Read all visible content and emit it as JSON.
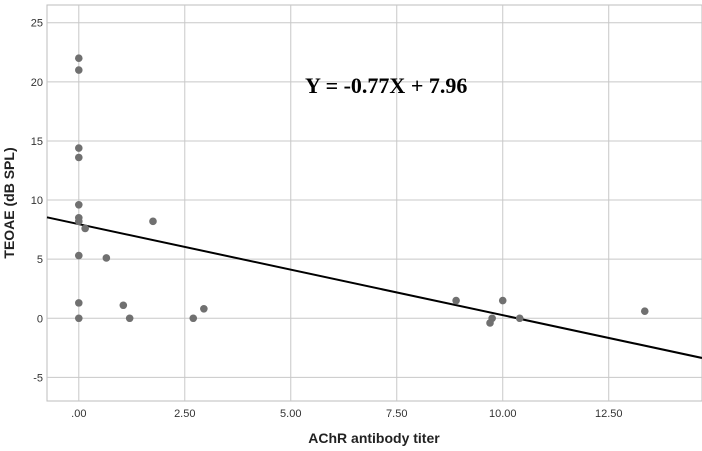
{
  "chart_data": {
    "type": "scatter",
    "xlabel": "AChR antibody titer",
    "ylabel": "TEOAE (dB SPL)",
    "xlim": [
      -0.75,
      14.7
    ],
    "ylim": [
      -7,
      26.5
    ],
    "x_ticks": [
      0,
      2.5,
      5,
      7.5,
      10,
      12.5
    ],
    "x_tick_labels": [
      ".00",
      "2.50",
      "5.00",
      "7.50",
      "10.00",
      "12.50"
    ],
    "y_ticks": [
      -5,
      0,
      5,
      10,
      15,
      20,
      25
    ],
    "y_tick_labels": [
      "-5",
      "0",
      "5",
      "10",
      "15",
      "20",
      "25"
    ],
    "grid": true,
    "point_color": "#707070",
    "line_color": "#000000",
    "points": [
      {
        "x": 0.0,
        "y": 22.0
      },
      {
        "x": 0.0,
        "y": 21.0
      },
      {
        "x": 0.0,
        "y": 14.4
      },
      {
        "x": 0.0,
        "y": 13.6
      },
      {
        "x": 0.0,
        "y": 9.6
      },
      {
        "x": 0.0,
        "y": 8.5
      },
      {
        "x": 0.0,
        "y": 8.2
      },
      {
        "x": 0.15,
        "y": 7.6
      },
      {
        "x": 0.0,
        "y": 5.3
      },
      {
        "x": 0.0,
        "y": 1.3
      },
      {
        "x": 0.0,
        "y": 0.0
      },
      {
        "x": 0.65,
        "y": 5.1
      },
      {
        "x": 1.05,
        "y": 1.1
      },
      {
        "x": 1.2,
        "y": 0.0
      },
      {
        "x": 1.75,
        "y": 8.2
      },
      {
        "x": 2.7,
        "y": 0.0
      },
      {
        "x": 2.95,
        "y": 0.8
      },
      {
        "x": 8.9,
        "y": 1.5
      },
      {
        "x": 9.7,
        "y": -0.4
      },
      {
        "x": 9.75,
        "y": 0.0
      },
      {
        "x": 10.0,
        "y": 1.5
      },
      {
        "x": 10.4,
        "y": 0.0
      },
      {
        "x": 13.35,
        "y": 0.6
      }
    ],
    "regression": {
      "equation": "Y = -0.77X + 7.96",
      "slope": -0.77,
      "intercept": 7.96
    }
  }
}
